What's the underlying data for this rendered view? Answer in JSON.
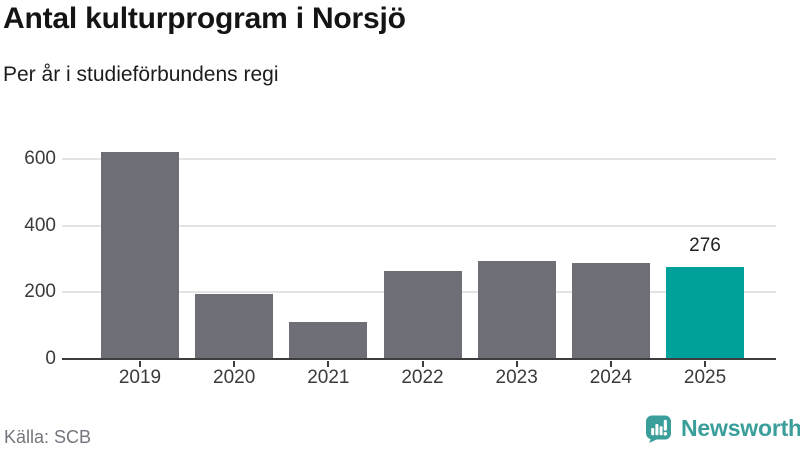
{
  "header": {
    "title": "Antal kulturprogram i Norsjö",
    "subtitle": "Per år i studieförbundens regi"
  },
  "footer": {
    "source": "Källa: SCB",
    "brand_name": "Newsworthy"
  },
  "colors": {
    "bar_default": "#6e6e76",
    "bar_highlight": "#00a19a",
    "brand_teal": "#3a9e9b",
    "gridline": "#e4e4e4",
    "axis": "#3d3d3d",
    "tick_label": "#3b3b3b"
  },
  "chart_data": {
    "type": "bar",
    "title": "Antal kulturprogram i Norsjö",
    "subtitle": "Per år i studieförbundens regi",
    "categories": [
      "2019",
      "2020",
      "2021",
      "2022",
      "2023",
      "2024",
      "2025"
    ],
    "values": [
      620,
      195,
      110,
      265,
      293,
      289,
      276
    ],
    "highlight_index": 6,
    "highlight_value_label": "276",
    "xlabel": "",
    "ylabel": "",
    "yticks": [
      0,
      200,
      400,
      600
    ],
    "ylim": [
      0,
      650
    ],
    "grid": true,
    "legend": false,
    "source": "Källa: SCB"
  }
}
